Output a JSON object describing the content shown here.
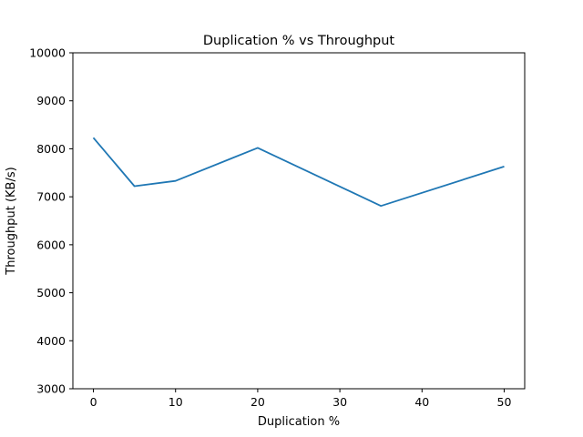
{
  "chart_data": {
    "type": "line",
    "title": "Duplication % vs Throughput",
    "xlabel": "Duplication %",
    "ylabel": "Throughput (KB/s)",
    "x": [
      0,
      5,
      10,
      20,
      35,
      50
    ],
    "series": [
      {
        "values": [
          8230,
          7220,
          7330,
          8020,
          6810,
          7630
        ],
        "color": "#1f77b4"
      }
    ],
    "xlim": [
      -2.5,
      52.5
    ],
    "ylim": [
      3000,
      10000
    ],
    "xticks": [
      0,
      10,
      20,
      30,
      40,
      50
    ],
    "yticks": [
      3000,
      4000,
      5000,
      6000,
      7000,
      8000,
      9000,
      10000
    ],
    "grid": false,
    "legend": "none"
  }
}
